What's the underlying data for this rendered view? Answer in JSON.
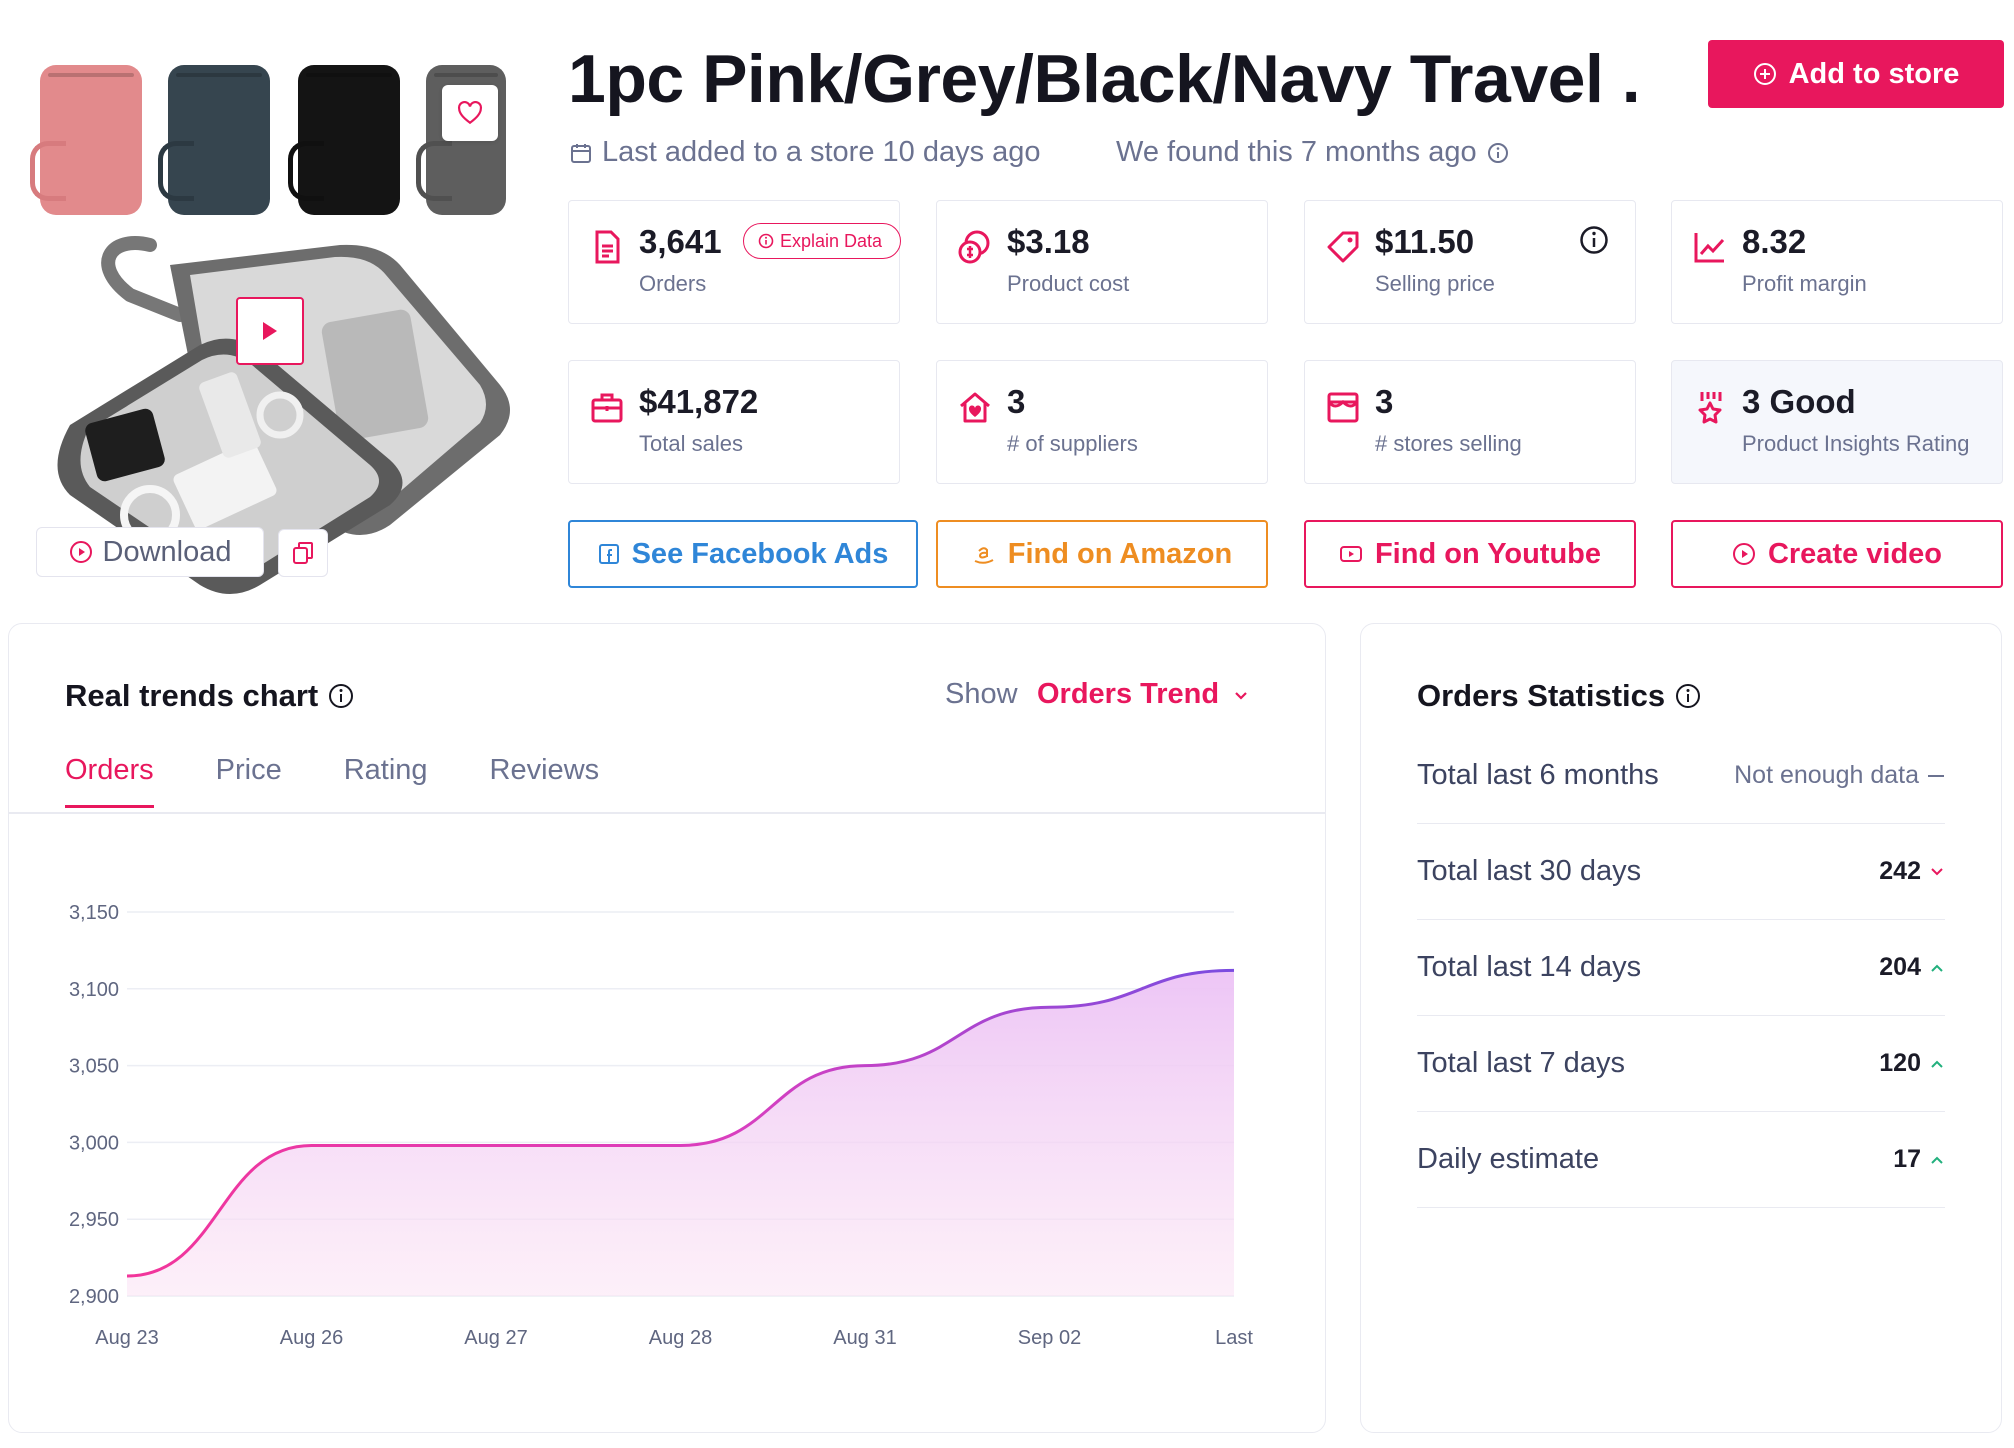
{
  "product": {
    "title": "1pc Pink/Grey/Black/Navy Travel ...",
    "last_added": "Last added to a store 10 days ago",
    "found": "We found this 7 months ago",
    "download_label": "Download",
    "add_to_store_label": "Add to store",
    "thumbnails": [
      "pink",
      "navy",
      "black",
      "grey"
    ]
  },
  "stats": [
    {
      "icon": "document-icon",
      "value": "3,641",
      "label": "Orders"
    },
    {
      "icon": "coins-icon",
      "value": "$3.18",
      "label": "Product cost"
    },
    {
      "icon": "price-tag-icon",
      "value": "$11.50",
      "label": "Selling price"
    },
    {
      "icon": "trend-chart-icon",
      "value": "8.32",
      "label": "Profit margin"
    },
    {
      "icon": "briefcase-icon",
      "value": "$41,872",
      "label": "Total sales"
    },
    {
      "icon": "home-heart-icon",
      "value": "3",
      "label": "# of suppliers"
    },
    {
      "icon": "storefront-icon",
      "value": "3",
      "label": "# stores selling"
    },
    {
      "icon": "award-icon",
      "value": "3 Good",
      "label": "Product Insights Rating"
    }
  ],
  "explain_label": "Explain Data",
  "actions": {
    "facebook": "See Facebook Ads",
    "amazon": "Find on Amazon",
    "youtube": "Find on Youtube",
    "video": "Create video"
  },
  "trends": {
    "title": "Real trends chart",
    "show_label": "Show",
    "show_value": "Orders Trend",
    "tabs": [
      "Orders",
      "Price",
      "Rating",
      "Reviews"
    ],
    "active_tab": "Orders"
  },
  "orders_stats": {
    "title": "Orders Statistics",
    "rows": [
      {
        "label": "Total last 6 months",
        "value": "Not enough data",
        "trend": "flat"
      },
      {
        "label": "Total last 30 days",
        "value": "242",
        "trend": "down"
      },
      {
        "label": "Total last 14 days",
        "value": "204",
        "trend": "up"
      },
      {
        "label": "Total last 7 days",
        "value": "120",
        "trend": "up"
      },
      {
        "label": "Daily estimate",
        "value": "17",
        "trend": "up"
      }
    ]
  },
  "colors": {
    "accent": "#e8175d",
    "facebook": "#2f86d8",
    "amazon": "#ee8d21",
    "trend_up": "#22b07d",
    "trend_down": "#e8175d",
    "line_start": "#f2359a",
    "line_end": "#7a4ce0"
  },
  "chart_data": {
    "type": "area",
    "x": [
      "Aug 23",
      "Aug 26",
      "Aug 27",
      "Aug 28",
      "Aug 31",
      "Sep 02",
      "Last"
    ],
    "series": [
      {
        "values": [
          2913,
          2998,
          2998,
          2998,
          3050,
          3088,
          3112
        ]
      }
    ],
    "yticks": [
      2900,
      2950,
      3000,
      3050,
      3100,
      3150
    ],
    "ylim": [
      2900,
      3150
    ],
    "grid": true
  }
}
